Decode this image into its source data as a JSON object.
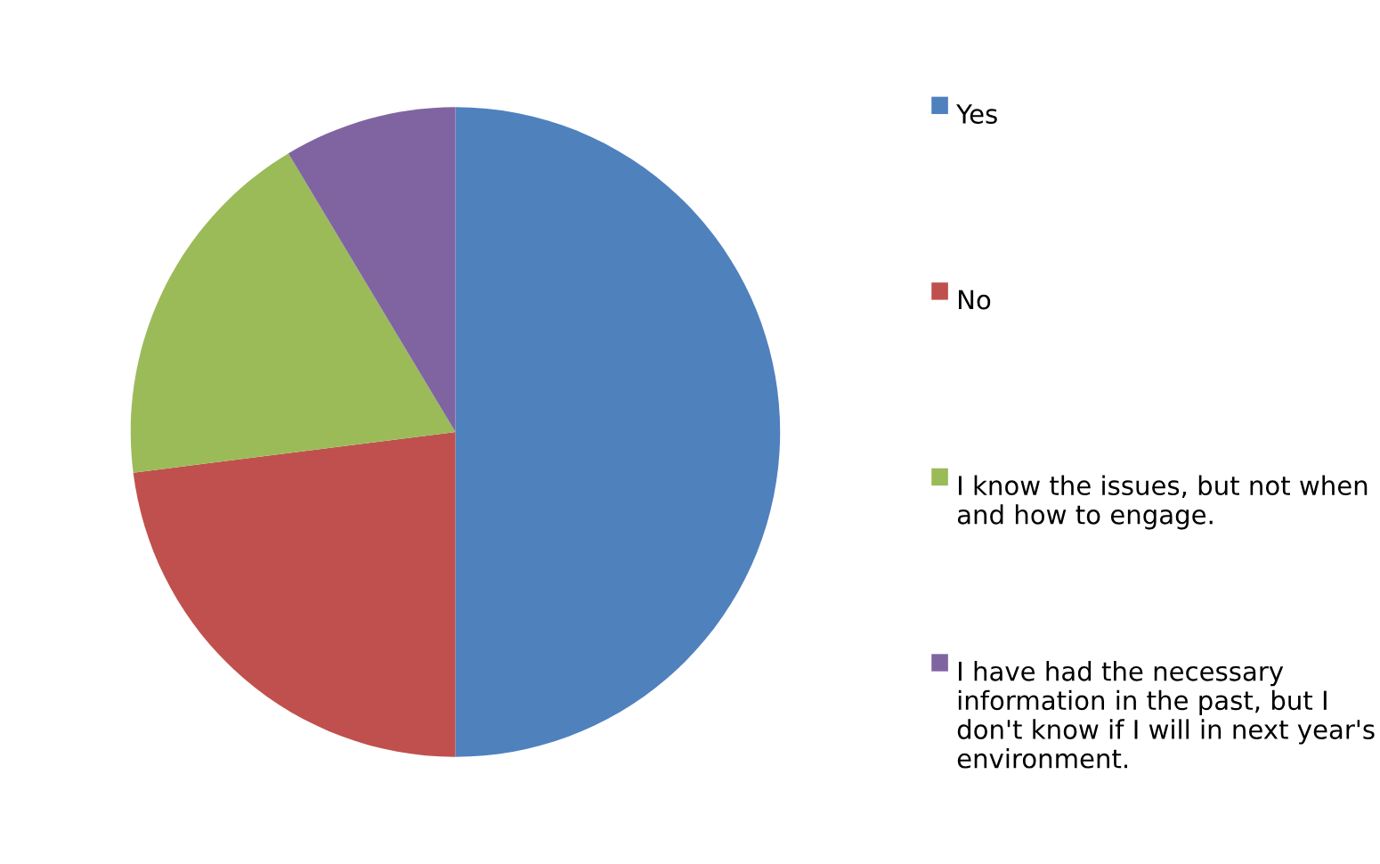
{
  "chart_data": {
    "type": "pie",
    "categories": [
      "Yes",
      "No",
      "I know the issues, but not when and how to engage.",
      "I have had the necessary information in the past, but I don't know if I will in next year's environment."
    ],
    "values": [
      50,
      23,
      18.4,
      8.6
    ],
    "colors": [
      "#4f81bd",
      "#c0504d",
      "#9bbb59",
      "#8064a2"
    ],
    "legend": "right"
  }
}
